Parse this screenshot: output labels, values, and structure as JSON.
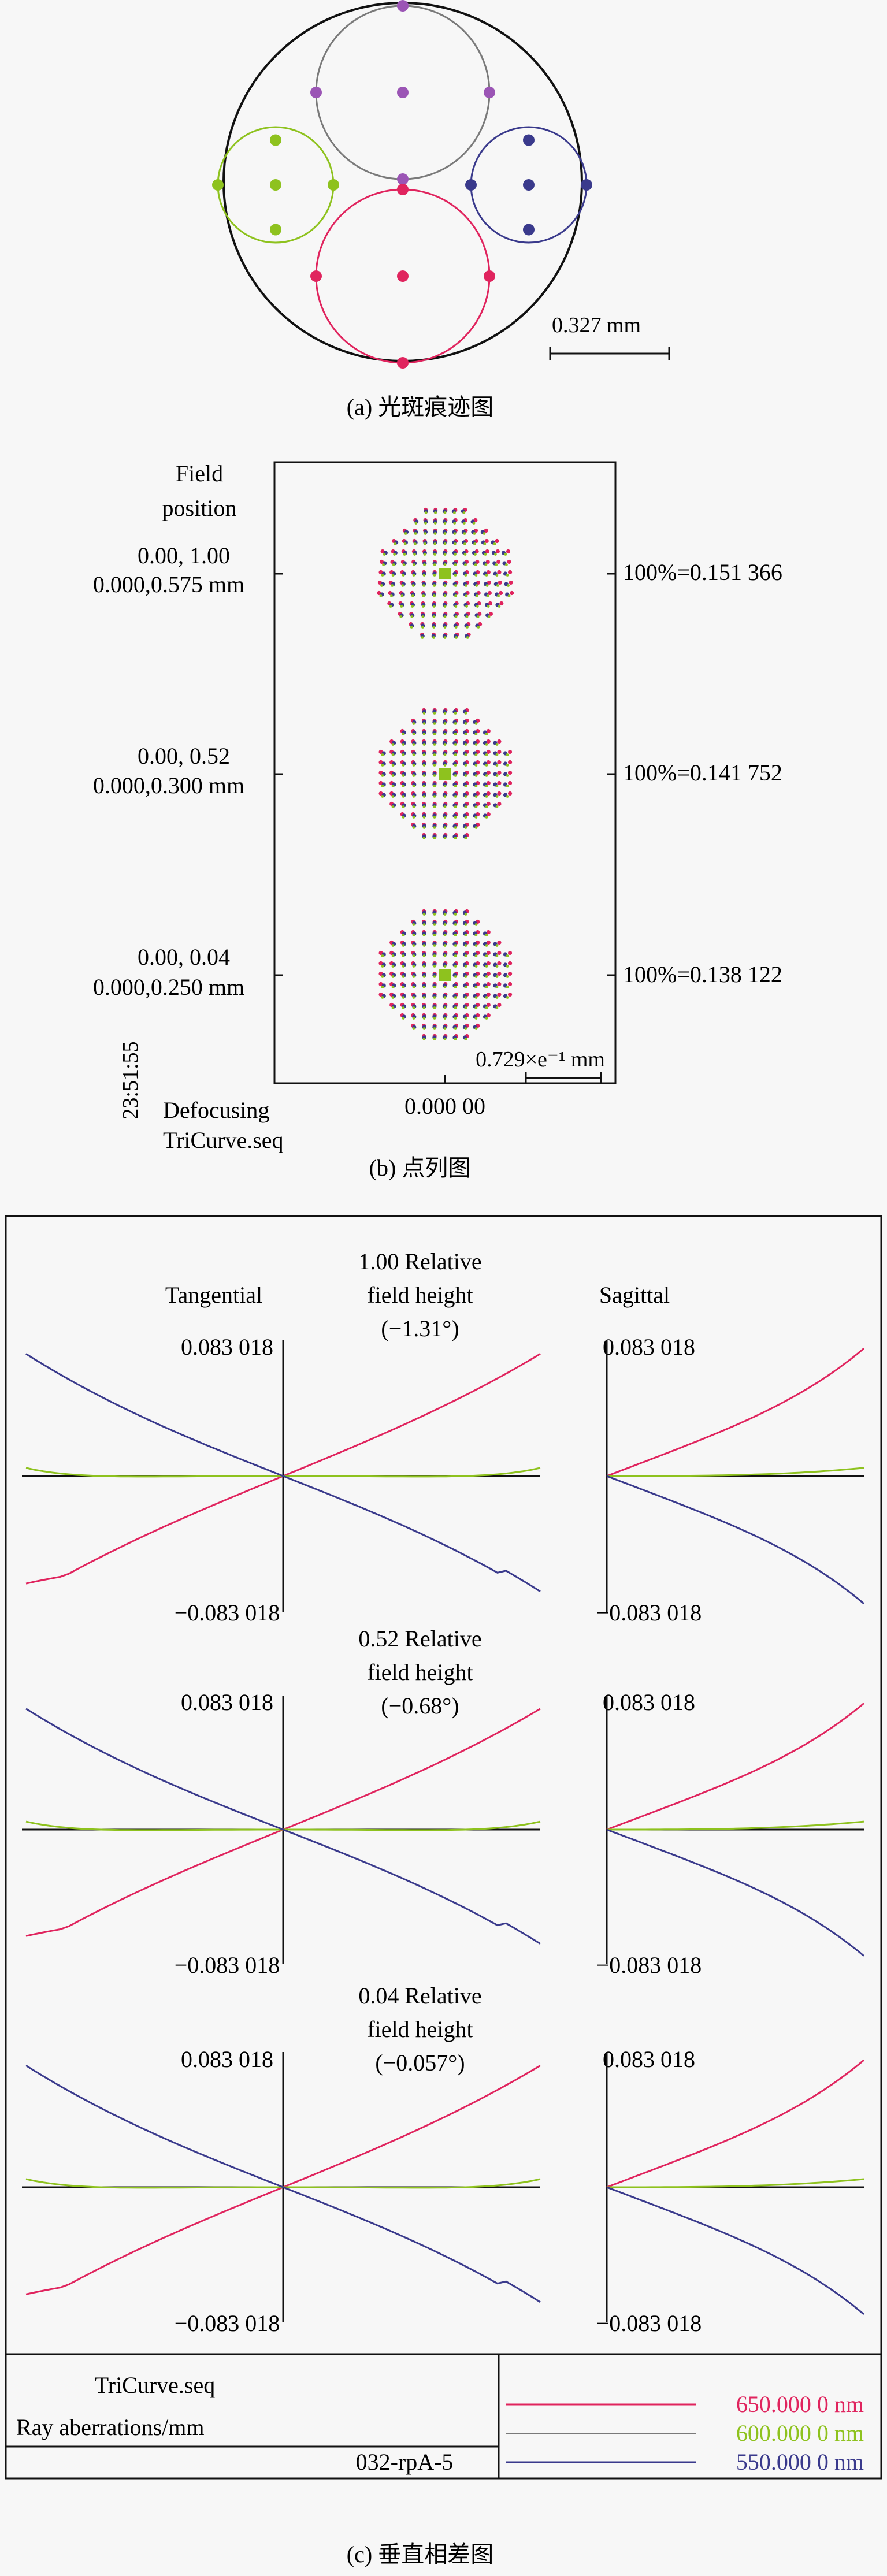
{
  "colors": {
    "red": "#e0245e",
    "green": "#8ec21e",
    "blue": "#3a3a8c",
    "purple": "#9b55b5",
    "gray": "#7a7a7a",
    "black": "#111111"
  },
  "panel_a": {
    "scale_label": "0.327 mm",
    "caption": "(a) 光斑痕迹图"
  },
  "panel_b": {
    "field_header_1": "Field",
    "field_header_2": "position",
    "fields": [
      {
        "coord": "0.00, 1.00",
        "mm": "0.000,0.575 mm",
        "rms": "100%=0.151 366"
      },
      {
        "coord": "0.00, 0.52",
        "mm": "0.000,0.300 mm",
        "rms": "100%=0.141 752"
      },
      {
        "coord": "0.00, 0.04",
        "mm": "0.000,0.250 mm",
        "rms": "100%=0.138 122"
      }
    ],
    "scale_label": "0.729×e⁻¹ mm",
    "defocus_value": "0.000 00",
    "time": "23:51:55",
    "defocusing_label": "Defocusing",
    "file": "TriCurve.seq",
    "caption": "(b) 点列图"
  },
  "panel_c": {
    "tangential_label": "Tangential",
    "sagittal_label": "Sagittal",
    "rows": [
      {
        "line1": "1.00 Relative",
        "line2": "field height",
        "line3": "(−1.31°)",
        "ymax": "0.083 018",
        "ymin": "−0.083 018"
      },
      {
        "line1": "0.52 Relative",
        "line2": "field height",
        "line3": "(−0.68°)",
        "ymax": "0.083 018",
        "ymin": "−0.083 018"
      },
      {
        "line1": "0.04 Relative",
        "line2": "field height",
        "line3": "(−0.057°)",
        "ymax": "0.083 018",
        "ymin": "−0.083 018"
      }
    ],
    "footer_file": "TriCurve.seq",
    "footer_units": "Ray aberrations/mm",
    "footer_id": "032-rpA-5",
    "legend": [
      {
        "label": "650.000 0 nm",
        "color": "#e0245e"
      },
      {
        "label": "600.000 0 nm",
        "color": "#8ec21e"
      },
      {
        "label": "550.000 0 nm",
        "color": "#3a3a8c"
      }
    ],
    "caption": "(c) 垂直相差图"
  }
}
